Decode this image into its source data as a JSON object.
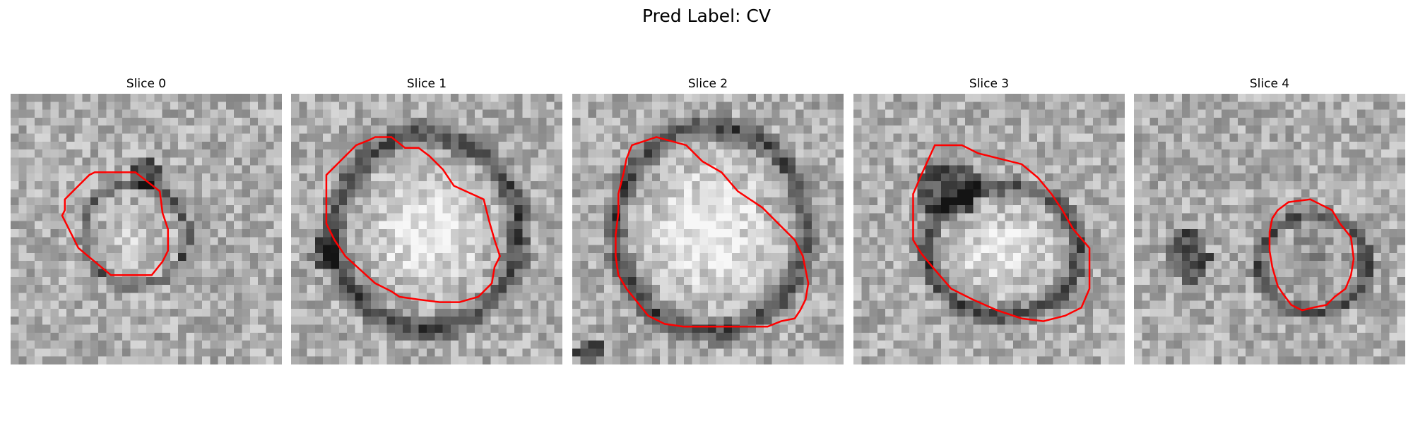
{
  "figure": {
    "title": "Pred Label: CV"
  },
  "panels": [
    {
      "title": "Slice 0"
    },
    {
      "title": "Slice 1"
    },
    {
      "title": "Slice 2"
    },
    {
      "title": "Slice 3"
    },
    {
      "title": "Slice 4"
    }
  ],
  "style": {
    "contour_color": "#ff0000",
    "colormap": "grayscale"
  }
}
